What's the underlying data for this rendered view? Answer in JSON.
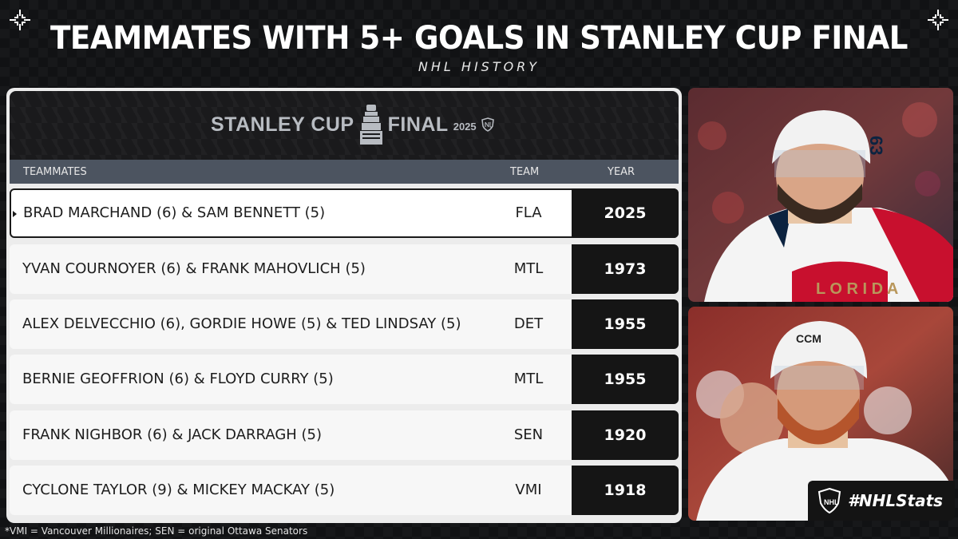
{
  "title": "TEAMMATES WITH 5+ GOALS IN STANLEY CUP FINAL",
  "subtitle": "NHL HISTORY",
  "logo": {
    "word1": "STANLEY CUP",
    "word2": "FINAL",
    "year": "2025"
  },
  "table": {
    "columns": [
      "TEAMMATES",
      "TEAM",
      "YEAR"
    ],
    "rows": [
      {
        "teammates": "BRAD MARCHAND (6) & SAM BENNETT (5)",
        "team": "FLA",
        "year": "2025"
      },
      {
        "teammates": "YVAN COURNOYER (6) & FRANK MAHOVLICH (5)",
        "team": "MTL",
        "year": "1973"
      },
      {
        "teammates": "ALEX DELVECCHIO (6), GORDIE HOWE (5) & TED LINDSAY (5)",
        "team": "DET",
        "year": "1955"
      },
      {
        "teammates": "BERNIE GEOFFRION (6) & FLOYD CURRY (5)",
        "team": "MTL",
        "year": "1955"
      },
      {
        "teammates": "FRANK NIGHBOR (6) & JACK DARRAGH (5)",
        "team": "SEN",
        "year": "1920"
      },
      {
        "teammates": "CYCLONE TAYLOR (9) & MICKEY MACKAY (5)",
        "team": "VMI",
        "year": "1918"
      }
    ]
  },
  "hashtag": "#NHLStats",
  "footnote": "*VMI = Vancouver Millionaires; SEN = original Ottawa Senators",
  "colors": {
    "background": "#111214",
    "header": "#4c5460",
    "year_box": "#151515",
    "panthers_red": "#c8102e",
    "panthers_gold": "#b9975b"
  },
  "icons": [
    "corner-crosshair-icon",
    "stanley-cup-icon",
    "nhl-shield-icon"
  ]
}
